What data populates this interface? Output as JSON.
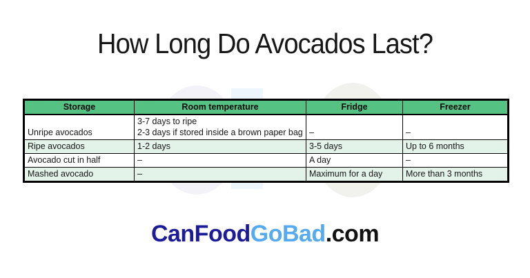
{
  "title": "How Long Do Avocados Last?",
  "chart_data": {
    "type": "table",
    "title": "How Long Do Avocados Last?",
    "columns": [
      "Storage",
      "Room temperature",
      "Fridge",
      "Freezer"
    ],
    "rows": [
      [
        "Unripe avocados",
        "3-7 days to ripe\n2-3 days if stored inside a brown paper bag",
        "–",
        "–"
      ],
      [
        "Ripe avocados",
        "1-2 days",
        "3-5 days",
        "Up to 6 months"
      ],
      [
        "Avocado cut in half",
        "–",
        "A day",
        "–"
      ],
      [
        "Mashed avocado",
        "–",
        "Maximum for a day",
        "More than 3 months"
      ]
    ],
    "style": {
      "header_bg": "#55c284",
      "alt_row_bg": "#e4f3ea",
      "row_bg": "#ffffff",
      "border_color": "#000000",
      "header_text_color": "#0b0b0b"
    }
  },
  "logo": {
    "text_primary": "CanFood",
    "text_secondary": "GoBad",
    "text_suffix": ".com",
    "color_primary": "#1c1c99",
    "color_secondary": "#55aaf0",
    "color_suffix": "#121212"
  }
}
